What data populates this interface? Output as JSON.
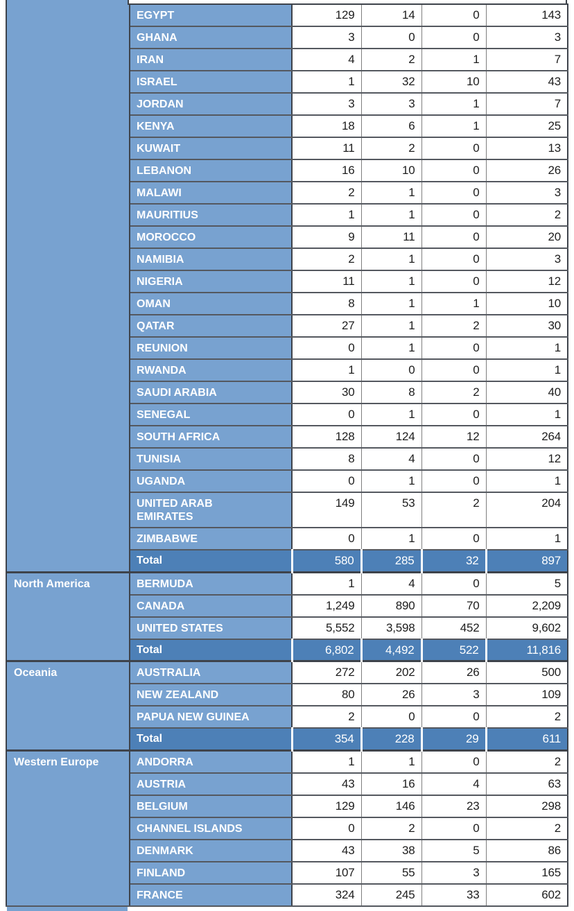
{
  "table": {
    "description": "Statistical table of counts by region and country with three value columns and a row total",
    "regions": [
      {
        "name": "",
        "rows": [
          {
            "country": "EGYPT",
            "values": [
              "129",
              "14",
              "0",
              "143"
            ]
          },
          {
            "country": "GHANA",
            "values": [
              "3",
              "0",
              "0",
              "3"
            ]
          },
          {
            "country": "IRAN",
            "values": [
              "4",
              "2",
              "1",
              "7"
            ]
          },
          {
            "country": "ISRAEL",
            "values": [
              "1",
              "32",
              "10",
              "43"
            ]
          },
          {
            "country": "JORDAN",
            "values": [
              "3",
              "3",
              "1",
              "7"
            ]
          },
          {
            "country": "KENYA",
            "values": [
              "18",
              "6",
              "1",
              "25"
            ]
          },
          {
            "country": "KUWAIT",
            "values": [
              "11",
              "2",
              "0",
              "13"
            ]
          },
          {
            "country": "LEBANON",
            "values": [
              "16",
              "10",
              "0",
              "26"
            ]
          },
          {
            "country": "MALAWI",
            "values": [
              "2",
              "1",
              "0",
              "3"
            ]
          },
          {
            "country": "MAURITIUS",
            "values": [
              "1",
              "1",
              "0",
              "2"
            ]
          },
          {
            "country": "MOROCCO",
            "values": [
              "9",
              "11",
              "0",
              "20"
            ]
          },
          {
            "country": "NAMIBIA",
            "values": [
              "2",
              "1",
              "0",
              "3"
            ]
          },
          {
            "country": "NIGERIA",
            "values": [
              "11",
              "1",
              "0",
              "12"
            ]
          },
          {
            "country": "OMAN",
            "values": [
              "8",
              "1",
              "1",
              "10"
            ]
          },
          {
            "country": "QATAR",
            "values": [
              "27",
              "1",
              "2",
              "30"
            ]
          },
          {
            "country": "REUNION",
            "values": [
              "0",
              "1",
              "0",
              "1"
            ]
          },
          {
            "country": "RWANDA",
            "values": [
              "1",
              "0",
              "0",
              "1"
            ]
          },
          {
            "country": "SAUDI ARABIA",
            "values": [
              "30",
              "8",
              "2",
              "40"
            ]
          },
          {
            "country": "SENEGAL",
            "values": [
              "0",
              "1",
              "0",
              "1"
            ]
          },
          {
            "country": "SOUTH AFRICA",
            "values": [
              "128",
              "124",
              "12",
              "264"
            ]
          },
          {
            "country": "TUNISIA",
            "values": [
              "8",
              "4",
              "0",
              "12"
            ]
          },
          {
            "country": "UGANDA",
            "values": [
              "0",
              "1",
              "0",
              "1"
            ]
          },
          {
            "country": "UNITED ARAB EMIRATES",
            "values": [
              "149",
              "53",
              "2",
              "204"
            ]
          },
          {
            "country": "ZIMBABWE",
            "values": [
              "0",
              "1",
              "0",
              "1"
            ]
          }
        ],
        "total": {
          "label": "Total",
          "values": [
            "580",
            "285",
            "32",
            "897"
          ]
        }
      },
      {
        "name": "North America",
        "rows": [
          {
            "country": "BERMUDA",
            "values": [
              "1",
              "4",
              "0",
              "5"
            ]
          },
          {
            "country": "CANADA",
            "values": [
              "1,249",
              "890",
              "70",
              "2,209"
            ]
          },
          {
            "country": "UNITED STATES",
            "values": [
              "5,552",
              "3,598",
              "452",
              "9,602"
            ]
          }
        ],
        "total": {
          "label": "Total",
          "values": [
            "6,802",
            "4,492",
            "522",
            "11,816"
          ]
        }
      },
      {
        "name": "Oceania",
        "rows": [
          {
            "country": "AUSTRALIA",
            "values": [
              "272",
              "202",
              "26",
              "500"
            ]
          },
          {
            "country": "NEW ZEALAND",
            "values": [
              "80",
              "26",
              "3",
              "109"
            ]
          },
          {
            "country": "PAPUA NEW GUINEA",
            "values": [
              "2",
              "0",
              "0",
              "2"
            ]
          }
        ],
        "total": {
          "label": "Total",
          "values": [
            "354",
            "228",
            "29",
            "611"
          ]
        }
      },
      {
        "name": "Western Europe",
        "rows": [
          {
            "country": "ANDORRA",
            "values": [
              "1",
              "1",
              "0",
              "2"
            ]
          },
          {
            "country": "AUSTRIA",
            "values": [
              "43",
              "16",
              "4",
              "63"
            ]
          },
          {
            "country": "BELGIUM",
            "values": [
              "129",
              "146",
              "23",
              "298"
            ]
          },
          {
            "country": "CHANNEL ISLANDS",
            "values": [
              "0",
              "2",
              "0",
              "2"
            ]
          },
          {
            "country": "DENMARK",
            "values": [
              "43",
              "38",
              "5",
              "86"
            ]
          },
          {
            "country": "FINLAND",
            "values": [
              "107",
              "55",
              "3",
              "165"
            ]
          },
          {
            "country": "FRANCE",
            "values": [
              "324",
              "245",
              "33",
              "602"
            ]
          }
        ],
        "total": null
      }
    ]
  },
  "colors": {
    "cell_blue": "#78a2d0",
    "total_blue": "#4d80b7",
    "border_dark": "#3e434b",
    "row_border": "#54585f",
    "num_separator": "#7e7e7e",
    "number_text": "#1d1d1d",
    "label_text": "#ffffff"
  }
}
